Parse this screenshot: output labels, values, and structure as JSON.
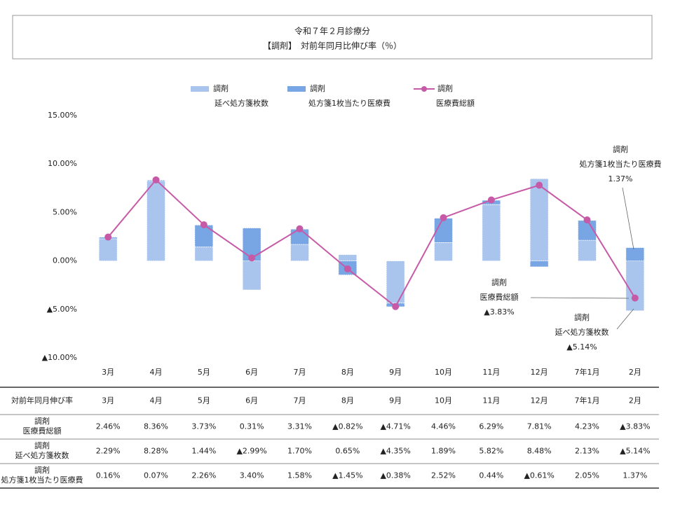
{
  "chart_data": {
    "type": "bar",
    "title": "令和７年２月診療分",
    "subtitle": "【調剤】　対前年同月比伸び率（％）",
    "categories": [
      "3月",
      "4月",
      "5月",
      "6月",
      "7月",
      "8月",
      "9月",
      "10月",
      "11月",
      "12月",
      "7年1月",
      "2月"
    ],
    "series": [
      {
        "name": [
          "調剤",
          "延べ処方箋枚数"
        ],
        "type": "bar",
        "color": "#a9c5ee",
        "values": [
          2.29,
          8.28,
          1.44,
          -2.99,
          1.7,
          0.65,
          -4.35,
          1.89,
          5.82,
          8.48,
          2.13,
          -5.14
        ]
      },
      {
        "name": [
          "調剤",
          "処方箋1枚当たり医療費"
        ],
        "type": "bar",
        "color": "#78a5e4",
        "values": [
          0.16,
          0.07,
          2.26,
          3.4,
          1.58,
          -1.45,
          -0.38,
          2.52,
          0.44,
          -0.61,
          2.05,
          1.37
        ]
      },
      {
        "name": [
          "調剤",
          "医療費総額"
        ],
        "type": "line",
        "color": "#c75aa6",
        "values": [
          2.46,
          8.36,
          3.73,
          0.31,
          3.31,
          -0.82,
          -4.71,
          4.46,
          6.29,
          7.81,
          4.23,
          -3.83
        ]
      }
    ],
    "ylim": [
      -10,
      15
    ],
    "yticks": [
      {
        "value": 15,
        "label": "15.00%"
      },
      {
        "value": 10,
        "label": "10.00%"
      },
      {
        "value": 5,
        "label": "5.00%"
      },
      {
        "value": 0,
        "label": "0.00%"
      },
      {
        "value": -5,
        "label": "▲5.00%"
      },
      {
        "value": -10,
        "label": "▲10.00%"
      }
    ],
    "legend": "top",
    "annotations": [
      {
        "lines": [
          "調剤",
          "処方箋1枚当たり医療費",
          "1.37%"
        ]
      },
      {
        "lines": [
          "調剤",
          "医療費総額",
          "▲3.83%"
        ]
      },
      {
        "lines": [
          "調剤",
          "延べ処方箋枚数",
          "▲5.14%"
        ]
      }
    ]
  },
  "table": {
    "header": [
      "対前年同月伸び率",
      "3月",
      "4月",
      "5月",
      "6月",
      "7月",
      "8月",
      "9月",
      "10月",
      "11月",
      "12月",
      "7年1月",
      "2月"
    ],
    "rows": [
      {
        "label": [
          "調剤",
          "医療費総額"
        ],
        "cells": [
          "2.46%",
          "8.36%",
          "3.73%",
          "0.31%",
          "3.31%",
          "▲0.82%",
          "▲4.71%",
          "4.46%",
          "6.29%",
          "7.81%",
          "4.23%",
          "▲3.83%"
        ]
      },
      {
        "label": [
          "調剤",
          "延べ処方箋枚数"
        ],
        "cells": [
          "2.29%",
          "8.28%",
          "1.44%",
          "▲2.99%",
          "1.70%",
          "0.65%",
          "▲4.35%",
          "1.89%",
          "5.82%",
          "8.48%",
          "2.13%",
          "▲5.14%"
        ]
      },
      {
        "label": [
          "調剤",
          "処方箋1枚当たり医療費"
        ],
        "cells": [
          "0.16%",
          "0.07%",
          "2.26%",
          "3.40%",
          "1.58%",
          "▲1.45%",
          "▲0.38%",
          "2.52%",
          "0.44%",
          "▲0.61%",
          "2.05%",
          "1.37%"
        ]
      }
    ]
  }
}
